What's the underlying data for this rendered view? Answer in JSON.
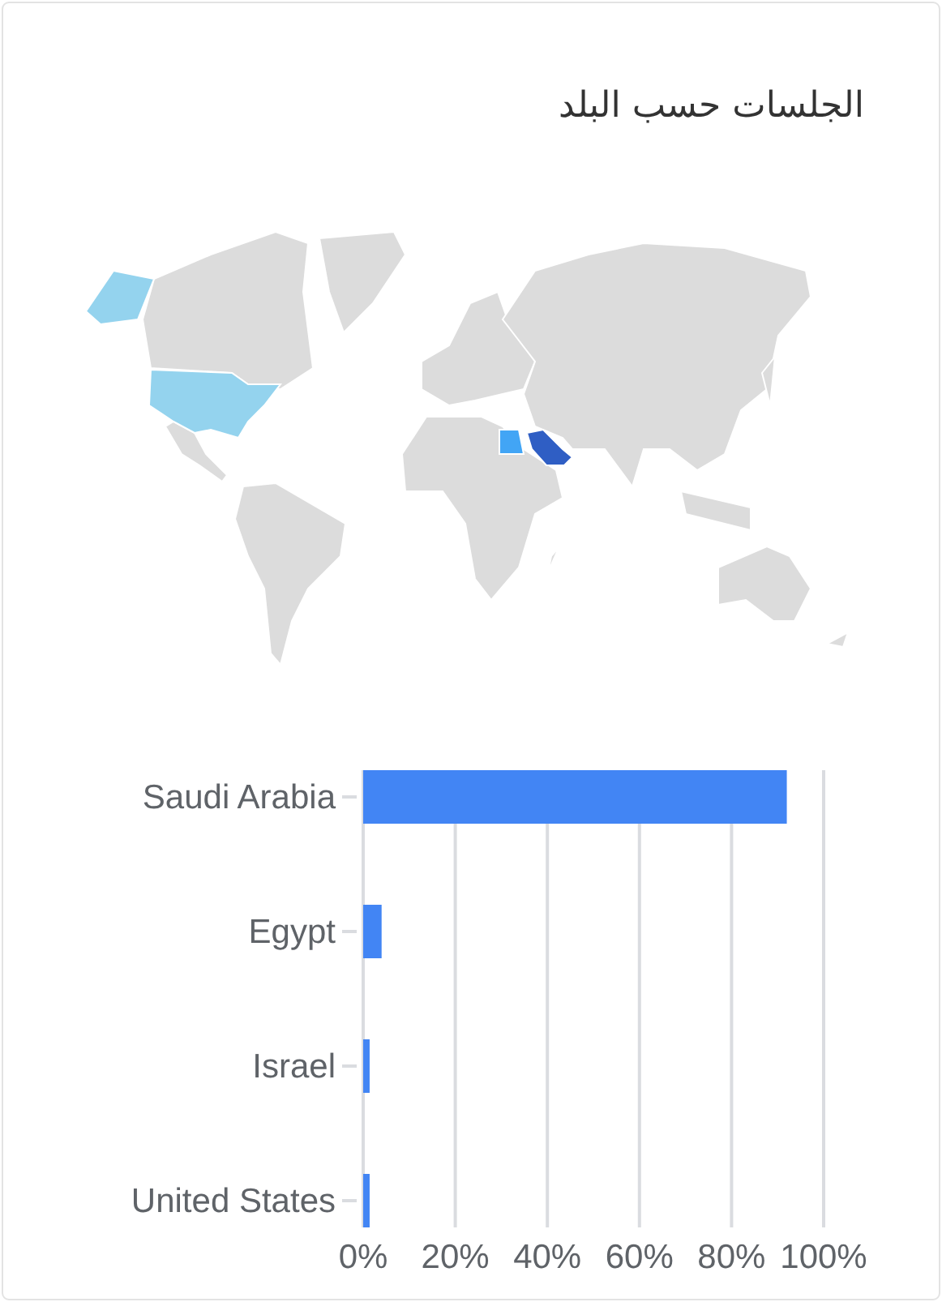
{
  "chart_data": {
    "type": "bar",
    "orientation": "horizontal",
    "title": "الجلسات حسب البلد",
    "categories": [
      "Saudi Arabia",
      "Egypt",
      "Israel",
      "United States"
    ],
    "values": [
      92,
      4,
      1.4,
      1.4
    ],
    "color": "#4285f4",
    "xlim": [
      0,
      100
    ],
    "xticks": [
      {
        "value": 0,
        "label": "0%"
      },
      {
        "value": 20,
        "label": "20%"
      },
      {
        "value": 40,
        "label": "40%"
      },
      {
        "value": 60,
        "label": "60%"
      },
      {
        "value": 80,
        "label": "80%"
      },
      {
        "value": 100,
        "label": "100%"
      }
    ],
    "grid": "x"
  }
}
